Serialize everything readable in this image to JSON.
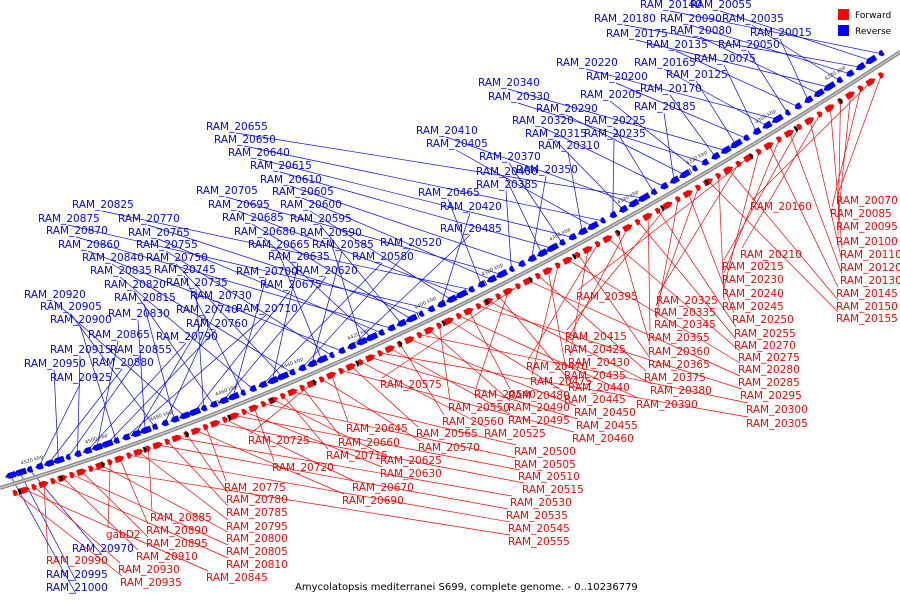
{
  "title": "Amycolatopsis mediterranei S699, complete genome. - 0..10236779",
  "legend": [
    {
      "label": "Forward",
      "color": "#ff0000"
    },
    {
      "label": "Reverse",
      "color": "#0000ff"
    }
  ],
  "colors": {
    "forward": "#ff0000",
    "reverse": "#0000ff",
    "backbone": "#7a7a7a"
  },
  "ticks": [
    "4280 kbp",
    "4300 kbp",
    "4320 kbp",
    "4340 kbp",
    "4360 kbp",
    "4380 kbp",
    "4400 kbp",
    "4420 kbp",
    "4440 kbp",
    "4460 kbp",
    "4480 kbp",
    "4500 kbp",
    "4520 kbp"
  ],
  "reverse_labels": [
    "RAM_20140",
    "RAM_20055",
    "RAM_20180",
    "RAM_20090",
    "RAM_20035",
    "RAM_20175",
    "RAM_20080",
    "RAM_20015",
    "RAM_20135",
    "RAM_20050",
    "RAM_20220",
    "RAM_20165",
    "RAM_20075",
    "RAM_20200",
    "RAM_20125",
    "RAM_20340",
    "RAM_20170",
    "RAM_20330",
    "RAM_20205",
    "RAM_20290",
    "RAM_20185",
    "RAM_20320",
    "RAM_20225",
    "RAM_20655",
    "RAM_20410",
    "RAM_20315",
    "RAM_20235",
    "RAM_20650",
    "RAM_20405",
    "RAM_20310",
    "RAM_20640",
    "RAM_20370",
    "RAM_20615",
    "RAM_20400",
    "RAM_20350",
    "RAM_20610",
    "RAM_20385",
    "RAM_20705",
    "RAM_20605",
    "RAM_20465",
    "RAM_20825",
    "RAM_20695",
    "RAM_20600",
    "RAM_20420",
    "RAM_20875",
    "RAM_20770",
    "RAM_20685",
    "RAM_20595",
    "RAM_20870",
    "RAM_20765",
    "RAM_20680",
    "RAM_20590",
    "RAM_20485",
    "RAM_20860",
    "RAM_20755",
    "RAM_20665",
    "RAM_20585",
    "RAM_20520",
    "RAM_20840",
    "RAM_20750",
    "RAM_20635",
    "RAM_20580",
    "RAM_20835",
    "RAM_20745",
    "RAM_20700",
    "RAM_20620",
    "RAM_20820",
    "RAM_20735",
    "RAM_20675",
    "RAM_20920",
    "RAM_20815",
    "RAM_20730",
    "RAM_20905",
    "RAM_20830",
    "RAM_20740",
    "RAM_20710",
    "RAM_20900",
    "RAM_20760",
    "RAM_20865",
    "RAM_20790",
    "RAM_20915",
    "RAM_20855",
    "RAM_20950",
    "RAM_20880",
    "RAM_20925",
    "RAM_20970",
    "RAM_20995",
    "RAM_21000"
  ],
  "forward_labels": [
    "RAM_20070",
    "RAM_20160",
    "RAM_20085",
    "RAM_20095",
    "RAM_20100",
    "RAM_20110",
    "RAM_20210",
    "RAM_20120",
    "RAM_20215",
    "RAM_20130",
    "RAM_20230",
    "RAM_20145",
    "RAM_20240",
    "RAM_20395",
    "RAM_20325",
    "RAM_20150",
    "RAM_20245",
    "RAM_20155",
    "RAM_20335",
    "RAM_20250",
    "RAM_20345",
    "RAM_20415",
    "RAM_20255",
    "RAM_20355",
    "RAM_20270",
    "RAM_20425",
    "RAM_20360",
    "RAM_20275",
    "RAM_20470",
    "RAM_20430",
    "RAM_20365",
    "RAM_20280",
    "RAM_20475",
    "RAM_20435",
    "RAM_20375",
    "RAM_20285",
    "RAM_20575",
    "RAM_20540",
    "RAM_20440",
    "RAM_20380",
    "RAM_20295",
    "RAM_20480",
    "RAM_20390",
    "RAM_20445",
    "RAM_20550",
    "RAM_20490",
    "RAM_20300",
    "RAM_20450",
    "RAM_20560",
    "RAM_20495",
    "RAM_20305",
    "RAM_20455",
    "RAM_20525",
    "RAM_20565",
    "RAM_20460",
    "RAM_20645",
    "RAM_20570",
    "RAM_20725",
    "RAM_20660",
    "RAM_20500",
    "RAM_20715",
    "RAM_20625",
    "RAM_20505",
    "RAM_20720",
    "RAM_20630",
    "RAM_20510",
    "RAM_20670",
    "RAM_20515",
    "RAM_20775",
    "RAM_20690",
    "RAM_20780",
    "RAM_20530",
    "RAM_20785",
    "RAM_20535",
    "RAM_20885",
    "RAM_20795",
    "RAM_20545",
    "RAM_20890",
    "gabD2",
    "RAM_20800",
    "RAM_20555",
    "RAM_20895",
    "RAM_20805",
    "RAM_20910",
    "RAM_20810",
    "RAM_20990",
    "RAM_20930",
    "RAM_20845",
    "RAM_20935"
  ]
}
